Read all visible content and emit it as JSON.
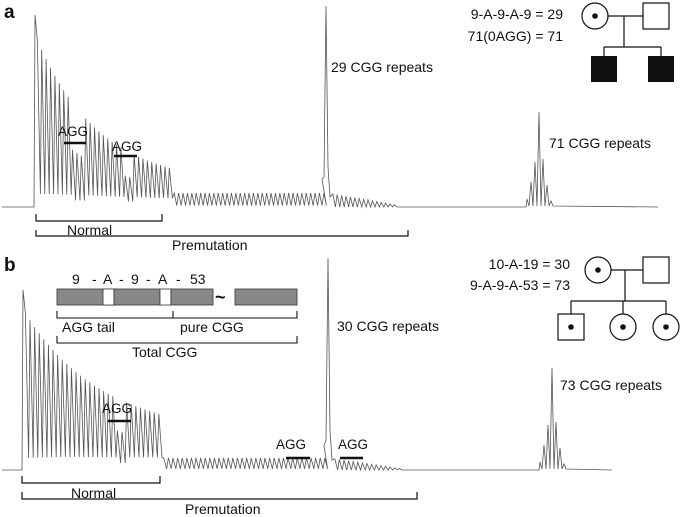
{
  "panels": [
    {
      "id": "a",
      "label": "a",
      "formula_1": "9-A-9-A-9 = 29",
      "formula_2": "71(0AGG) = 71",
      "peak_label_1": "29 CGG repeats",
      "peak_label_2": "71 CGG repeats",
      "agg_labels": [
        "AGG",
        "AGG"
      ],
      "bracket_normal": "Normal",
      "bracket_premutation": "Premutation",
      "pedigree": {
        "parents": [
          "carrier-female",
          "male"
        ],
        "children": [
          "affected-male",
          "affected-male"
        ]
      }
    },
    {
      "id": "b",
      "label": "b",
      "formula_1": "10-A-19 = 30",
      "formula_2": "9-A-9-A-53 = 73",
      "peak_label_1": "30 CGG repeats",
      "peak_label_2": "73 CGG repeats",
      "agg_labels": [
        "AGG",
        "AGG",
        "AGG"
      ],
      "bracket_normal": "Normal",
      "bracket_premutation": "Premutation",
      "schematic": {
        "n1": "9",
        "a1": "A",
        "n2": "9",
        "a2": "A",
        "n3": "53",
        "dash": "-",
        "tilde": "~",
        "agg_tail": "AGG tail",
        "pure_cgg": "pure CGG",
        "total_cgg": "Total CGG"
      },
      "pedigree": {
        "parents": [
          "carrier-female",
          "male"
        ],
        "children": [
          "carrier-male",
          "carrier-female",
          "carrier-female"
        ]
      }
    }
  ]
}
